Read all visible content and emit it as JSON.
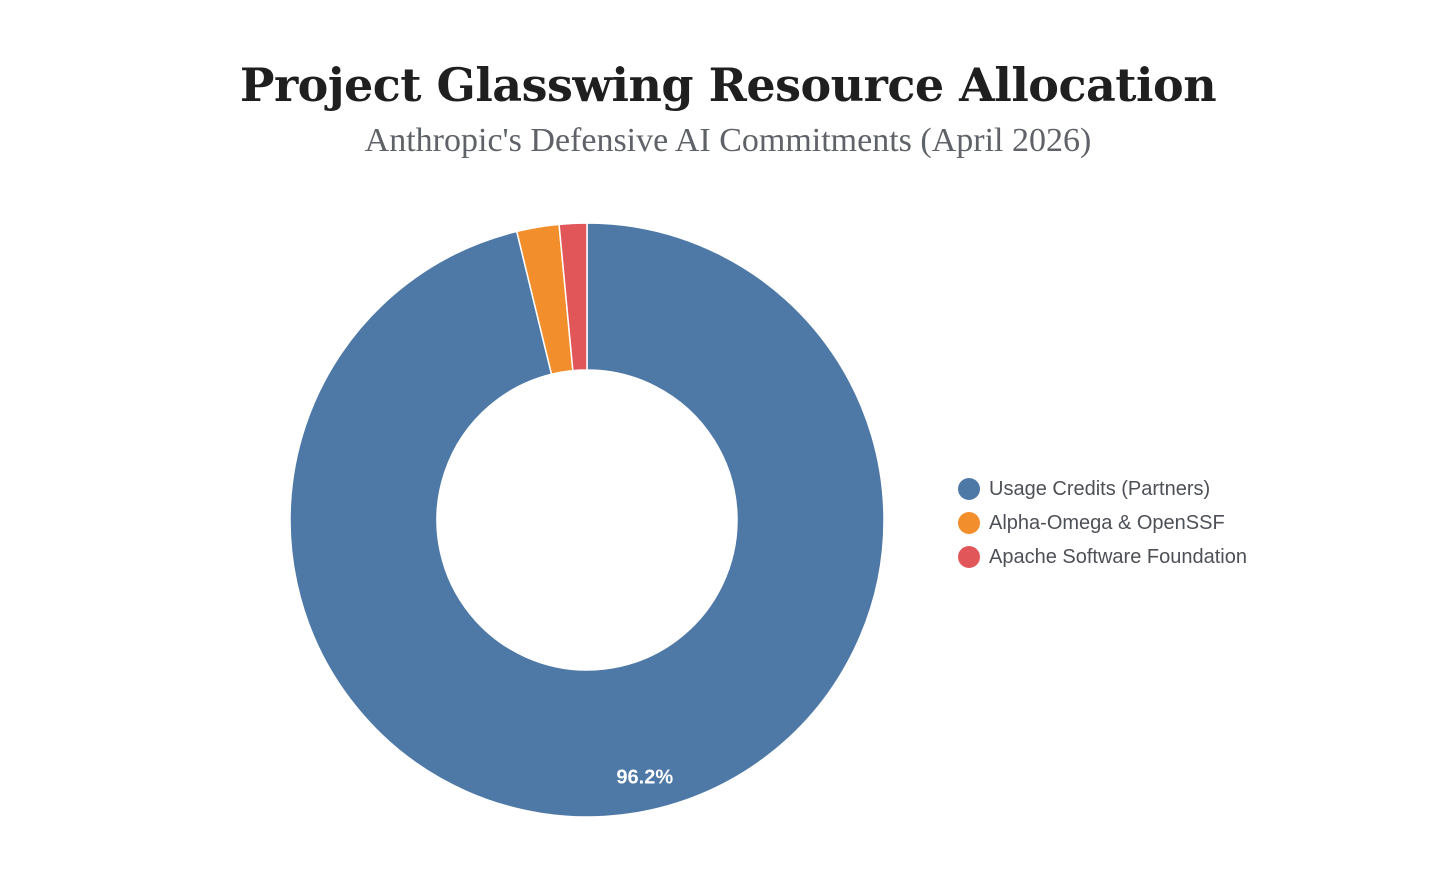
{
  "chart_data": {
    "type": "pie",
    "title": "Project Glasswing Resource Allocation",
    "subtitle": "Anthropic's Defensive AI Commitments (April 2026)",
    "categories": [
      "Usage Credits (Partners)",
      "Alpha-Omega & OpenSSF",
      "Apache Software Foundation"
    ],
    "values": [
      96.2,
      2.3,
      1.5
    ],
    "colors": [
      "#4e79a7",
      "#f28e2b",
      "#e15759"
    ],
    "slice_labels": [
      "96.2%",
      "",
      ""
    ],
    "donut": true,
    "legend_position": "right"
  }
}
